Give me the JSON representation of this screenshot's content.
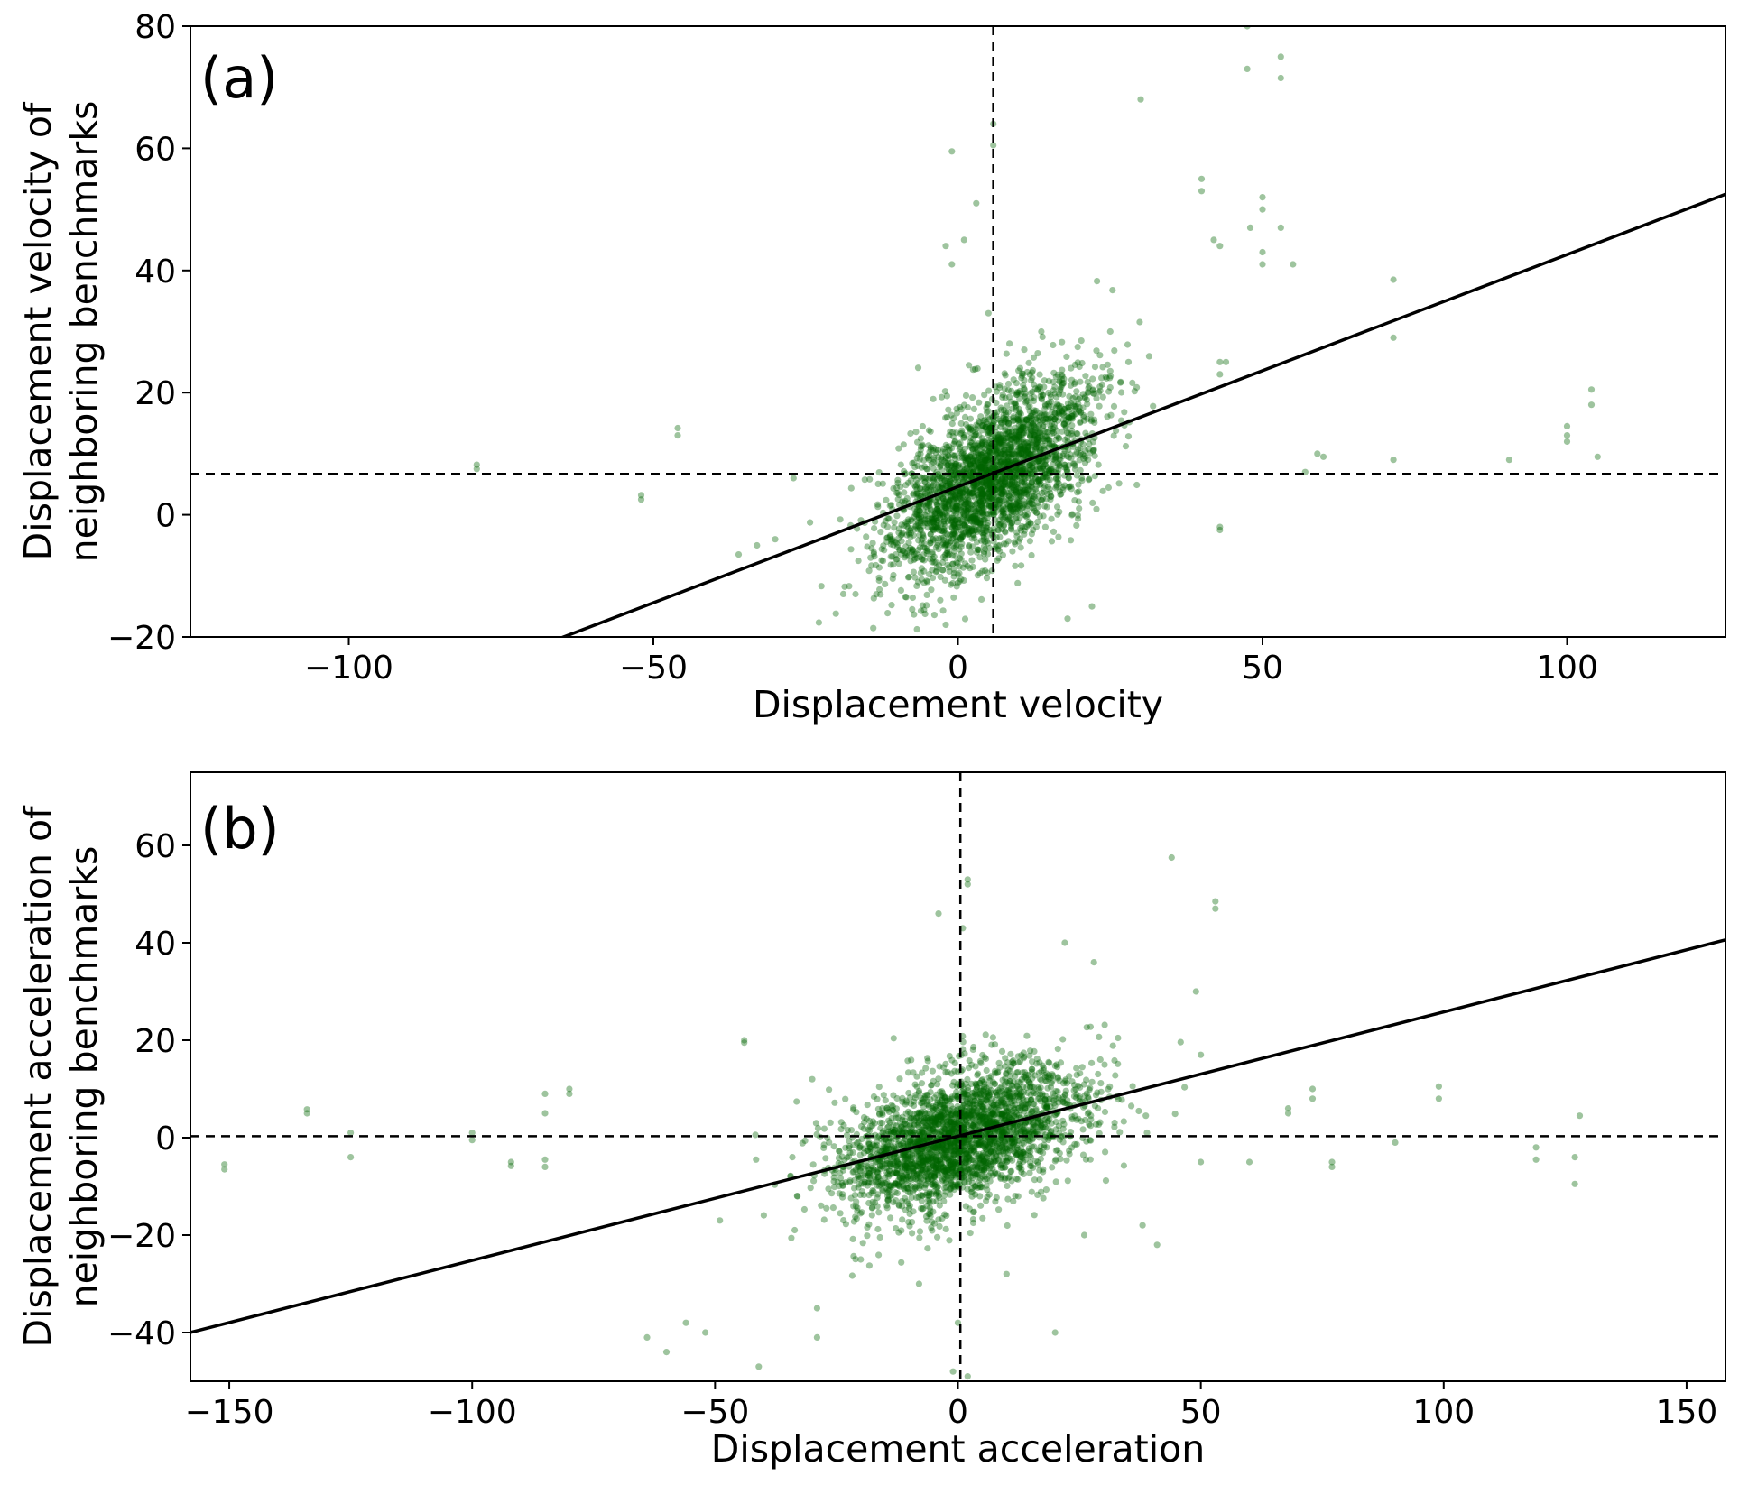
{
  "colors": {
    "points": "#006400",
    "lines": "#000000"
  },
  "chart_data": [
    {
      "type": "scatter",
      "panel_label": "(a)",
      "xlabel": "Displacement velocity",
      "ylabel_line1": "Displacement velocity of",
      "ylabel_line2": "neighboring benchmarks",
      "xlim": [
        -126,
        126
      ],
      "ylim": [
        -20,
        80
      ],
      "xticks": [
        -100,
        -50,
        0,
        50,
        100
      ],
      "xtick_labels": [
        "−100",
        "−50",
        "0",
        "50",
        "100"
      ],
      "yticks": [
        -20,
        0,
        20,
        40,
        60,
        80
      ],
      "ytick_labels": [
        "−20",
        "0",
        "20",
        "40",
        "60",
        "80"
      ],
      "vline_x": 5.8,
      "hline_y": 6.7,
      "fit_line": {
        "slope": 0.38,
        "intercept": 4.6
      },
      "cluster": {
        "mean": [
          5.2,
          6.2
        ],
        "sd": [
          8.5,
          8.0
        ],
        "corr": 0.6,
        "n": 2800
      },
      "outliers": [
        [
          -79,
          7.5
        ],
        [
          -79,
          8.2
        ],
        [
          -52,
          2.5
        ],
        [
          -52,
          3.2
        ],
        [
          -46,
          13
        ],
        [
          -46,
          14.2
        ],
        [
          -27,
          6
        ],
        [
          -33,
          -5
        ],
        [
          -36,
          -6.5
        ],
        [
          -30,
          -4
        ],
        [
          -1,
          59.5
        ],
        [
          3,
          51
        ],
        [
          1,
          45
        ],
        [
          -2,
          44
        ],
        [
          -1,
          41
        ],
        [
          5,
          33
        ],
        [
          5.8,
          60.5
        ],
        [
          5.8,
          64
        ],
        [
          30,
          68
        ],
        [
          47.5,
          80
        ],
        [
          47.5,
          73
        ],
        [
          50,
          52
        ],
        [
          50,
          50
        ],
        [
          48,
          47
        ],
        [
          53,
          75
        ],
        [
          53,
          71.5
        ],
        [
          53,
          47
        ],
        [
          55,
          41
        ],
        [
          40,
          55
        ],
        [
          40,
          53
        ],
        [
          42,
          45
        ],
        [
          43,
          44
        ],
        [
          50,
          43
        ],
        [
          50,
          41
        ],
        [
          43,
          25
        ],
        [
          43,
          23
        ],
        [
          44,
          25
        ],
        [
          43,
          -2
        ],
        [
          43,
          -2.5
        ],
        [
          71.5,
          38.5
        ],
        [
          71.5,
          29
        ],
        [
          71.5,
          9
        ],
        [
          90.5,
          9
        ],
        [
          100,
          14.5
        ],
        [
          100,
          13
        ],
        [
          100,
          12
        ],
        [
          104,
          20.5
        ],
        [
          104,
          18
        ],
        [
          105,
          9.5
        ],
        [
          59,
          10
        ],
        [
          60,
          9.5
        ],
        [
          57,
          7
        ],
        [
          -2,
          -18
        ],
        [
          18,
          -17
        ],
        [
          22,
          -15
        ],
        [
          28,
          25
        ],
        [
          25,
          30
        ]
      ]
    },
    {
      "type": "scatter",
      "panel_label": "(b)",
      "xlabel": "Displacement acceleration",
      "ylabel_line1": "Displacement acceleration of",
      "ylabel_line2": "neighboring benchmarks",
      "xlim": [
        -158,
        158
      ],
      "ylim": [
        -50,
        75
      ],
      "xticks": [
        -150,
        -100,
        -50,
        0,
        50,
        100,
        150
      ],
      "xtick_labels": [
        "−150",
        "−100",
        "−50",
        "0",
        "50",
        "100",
        "150"
      ],
      "yticks": [
        -40,
        -20,
        0,
        20,
        40,
        60
      ],
      "ytick_labels": [
        "−40",
        "−20",
        "0",
        "20",
        "40",
        "60"
      ],
      "vline_x": 0.5,
      "hline_y": 0.3,
      "fit_line": {
        "slope": 0.255,
        "intercept": 0.3
      },
      "cluster": {
        "mean": [
          0.5,
          0.0
        ],
        "sd": [
          12.5,
          7.5
        ],
        "corr": 0.45,
        "n": 2800
      },
      "outliers": [
        [
          -151,
          -5.5
        ],
        [
          -151,
          -6.5
        ],
        [
          -134,
          5
        ],
        [
          -134,
          5.8
        ],
        [
          -125,
          1
        ],
        [
          -125,
          -4
        ],
        [
          -100,
          1
        ],
        [
          -100,
          -0.5
        ],
        [
          -92,
          -5
        ],
        [
          -92,
          -5.8
        ],
        [
          -85,
          9
        ],
        [
          -85,
          5
        ],
        [
          -85,
          -4.5
        ],
        [
          -85,
          -6
        ],
        [
          -80,
          9
        ],
        [
          -80,
          10
        ],
        [
          -64,
          -41
        ],
        [
          -60,
          -44
        ],
        [
          -56,
          -38
        ],
        [
          -52,
          -40
        ],
        [
          -49,
          -17
        ],
        [
          -44,
          19.5
        ],
        [
          -44,
          20
        ],
        [
          -41,
          -47
        ],
        [
          -29,
          -41
        ],
        [
          -29,
          -35
        ],
        [
          -30,
          12
        ],
        [
          2,
          53
        ],
        [
          2,
          52
        ],
        [
          -4,
          46
        ],
        [
          1,
          43
        ],
        [
          22,
          40
        ],
        [
          28,
          36
        ],
        [
          44,
          57.5
        ],
        [
          53,
          48.5
        ],
        [
          53,
          47
        ],
        [
          49,
          30
        ],
        [
          50,
          17
        ],
        [
          50,
          -5
        ],
        [
          41,
          -22
        ],
        [
          38,
          -18
        ],
        [
          60,
          -5
        ],
        [
          68,
          6
        ],
        [
          68,
          5
        ],
        [
          73,
          10
        ],
        [
          73,
          8
        ],
        [
          77,
          -5
        ],
        [
          77,
          -6
        ],
        [
          90,
          -1
        ],
        [
          99,
          10.5
        ],
        [
          99,
          8
        ],
        [
          119,
          -2
        ],
        [
          119,
          -4.5
        ],
        [
          127,
          -9.5
        ],
        [
          127,
          -4
        ],
        [
          128,
          4.5
        ],
        [
          -1,
          -48
        ],
        [
          2,
          -49
        ],
        [
          0,
          -38
        ],
        [
          20,
          -40
        ],
        [
          -8,
          -30
        ],
        [
          10,
          -28
        ],
        [
          26,
          -20
        ],
        [
          -20,
          -25
        ]
      ]
    }
  ]
}
